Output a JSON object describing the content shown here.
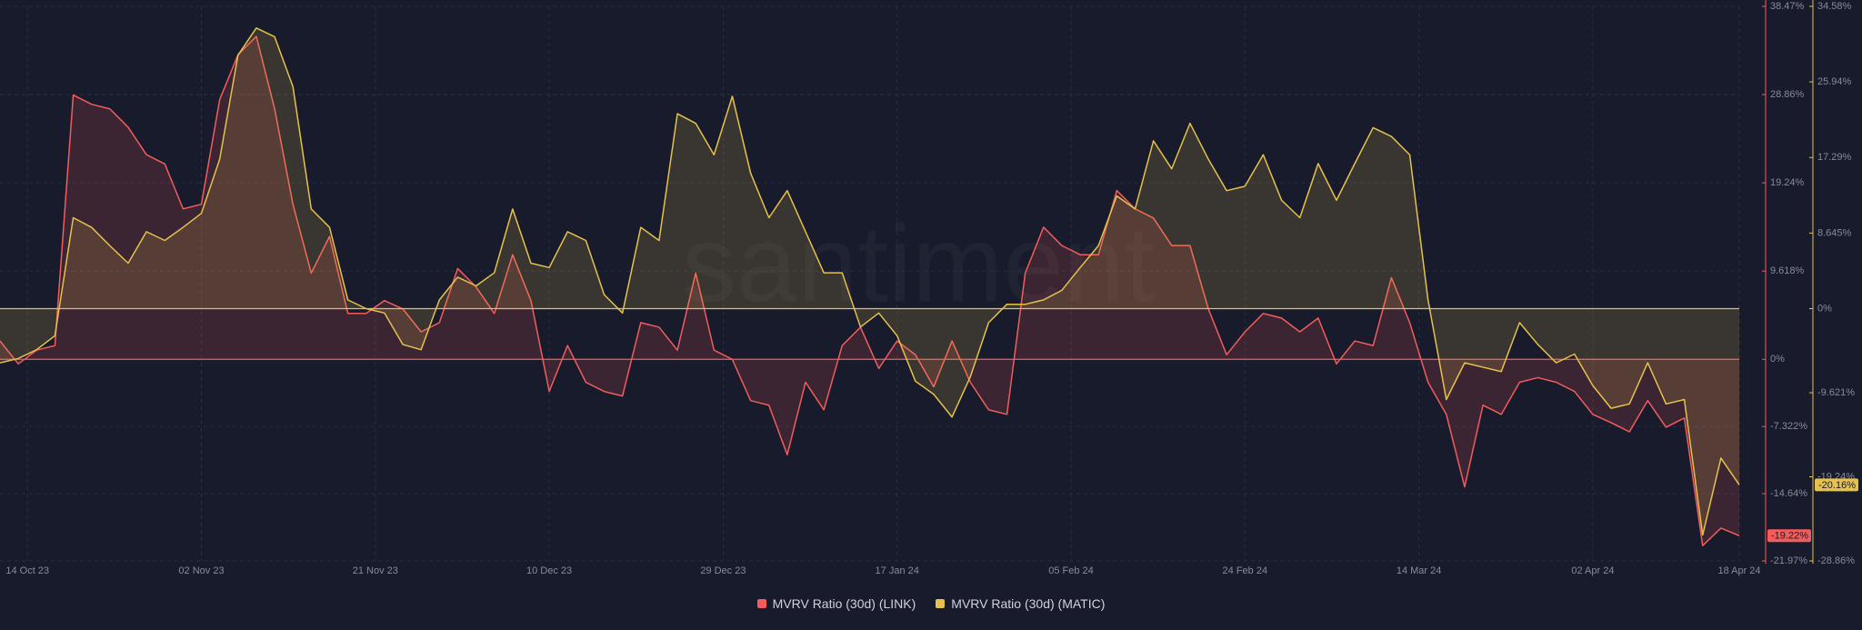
{
  "chart_data": {
    "type": "line",
    "watermark": "santiment",
    "x": [
      "2023-10-11",
      "2023-10-13",
      "2023-10-15",
      "2023-10-17",
      "2023-10-19",
      "2023-10-21",
      "2023-10-23",
      "2023-10-25",
      "2023-10-27",
      "2023-10-29",
      "2023-10-31",
      "2023-11-02",
      "2023-11-04",
      "2023-11-06",
      "2023-11-08",
      "2023-11-10",
      "2023-11-12",
      "2023-11-14",
      "2023-11-16",
      "2023-11-18",
      "2023-11-20",
      "2023-11-22",
      "2023-11-24",
      "2023-11-26",
      "2023-11-28",
      "2023-11-30",
      "2023-12-02",
      "2023-12-04",
      "2023-12-06",
      "2023-12-08",
      "2023-12-10",
      "2023-12-12",
      "2023-12-14",
      "2023-12-16",
      "2023-12-18",
      "2023-12-20",
      "2023-12-22",
      "2023-12-24",
      "2023-12-26",
      "2023-12-28",
      "2023-12-30",
      "2024-01-01",
      "2024-01-03",
      "2024-01-05",
      "2024-01-07",
      "2024-01-09",
      "2024-01-11",
      "2024-01-13",
      "2024-01-15",
      "2024-01-17",
      "2024-01-19",
      "2024-01-21",
      "2024-01-23",
      "2024-01-25",
      "2024-01-27",
      "2024-01-29",
      "2024-01-31",
      "2024-02-02",
      "2024-02-04",
      "2024-02-06",
      "2024-02-08",
      "2024-02-10",
      "2024-02-12",
      "2024-02-14",
      "2024-02-16",
      "2024-02-18",
      "2024-02-20",
      "2024-02-22",
      "2024-02-24",
      "2024-02-26",
      "2024-02-28",
      "2024-03-01",
      "2024-03-03",
      "2024-03-05",
      "2024-03-07",
      "2024-03-09",
      "2024-03-11",
      "2024-03-13",
      "2024-03-15",
      "2024-03-17",
      "2024-03-19",
      "2024-03-21",
      "2024-03-23",
      "2024-03-25",
      "2024-03-27",
      "2024-03-29",
      "2024-03-31",
      "2024-04-02",
      "2024-04-04",
      "2024-04-06",
      "2024-04-08",
      "2024-04-10",
      "2024-04-12",
      "2024-04-14",
      "2024-04-16",
      "2024-04-18"
    ],
    "xlim": [
      "2023-10-11",
      "2024-04-18"
    ],
    "xticks": [
      {
        "value": "2023-10-14",
        "label": "14 Oct 23"
      },
      {
        "value": "2023-11-02",
        "label": "02 Nov 23"
      },
      {
        "value": "2023-11-21",
        "label": "21 Nov 23"
      },
      {
        "value": "2023-12-10",
        "label": "10 Dec 23"
      },
      {
        "value": "2023-12-29",
        "label": "29 Dec 23"
      },
      {
        "value": "2024-01-17",
        "label": "17 Jan 24"
      },
      {
        "value": "2024-02-05",
        "label": "05 Feb 24"
      },
      {
        "value": "2024-02-24",
        "label": "24 Feb 24"
      },
      {
        "value": "2024-03-14",
        "label": "14 Mar 24"
      },
      {
        "value": "2024-04-02",
        "label": "02 Apr 24"
      },
      {
        "value": "2024-04-18",
        "label": "18 Apr 24"
      }
    ],
    "ylim": [
      -21.97,
      38.47
    ],
    "yticks": [
      {
        "value": 38.47,
        "label": "38.47%"
      },
      {
        "value": 28.86,
        "label": "28.86%"
      },
      {
        "value": 19.24,
        "label": "19.24%"
      },
      {
        "value": 9.618,
        "label": "9.618%"
      },
      {
        "value": 0,
        "label": "0%"
      },
      {
        "value": -7.322,
        "label": "-7.322%"
      },
      {
        "value": -14.64,
        "label": "-14.64%"
      },
      {
        "value": -21.97,
        "label": "-21.97%"
      }
    ],
    "y2lim": [
      -28.86,
      34.58
    ],
    "y2ticks": [
      {
        "value": 34.58,
        "label": "34.58%"
      },
      {
        "value": 25.94,
        "label": "25.94%"
      },
      {
        "value": 17.29,
        "label": "17.29%"
      },
      {
        "value": 8.645,
        "label": "8.645%"
      },
      {
        "value": 0,
        "label": "0%"
      },
      {
        "value": -9.621,
        "label": "-9.621%"
      },
      {
        "value": -19.24,
        "label": "-19.24%"
      },
      {
        "value": -28.86,
        "label": "-28.86%"
      }
    ],
    "grid": true,
    "series": [
      {
        "name": "MVRV Ratio (30d) (LINK)",
        "color": "#f25c5c",
        "end_label": "-19.22%",
        "values": [
          2.0,
          -0.5,
          1.0,
          1.5,
          28.8,
          27.8,
          27.3,
          25.3,
          22.3,
          21.3,
          16.4,
          16.9,
          28.3,
          33.2,
          35.2,
          27.3,
          16.9,
          9.4,
          13.4,
          5.0,
          5.0,
          6.4,
          5.5,
          3.0,
          4.0,
          9.9,
          7.9,
          5.0,
          11.4,
          6.4,
          -3.5,
          1.5,
          -2.5,
          -3.5,
          -4.0,
          4.0,
          3.5,
          1.0,
          9.4,
          1.0,
          0,
          -4.5,
          -5.0,
          -10.4,
          -2.5,
          -5.5,
          1.5,
          3.5,
          -1.0,
          2.0,
          0.5,
          -3.0,
          2.0,
          -2.5,
          -5.5,
          -6.0,
          9.4,
          14.4,
          12.4,
          11.4,
          11.4,
          18.4,
          16.4,
          15.4,
          12.4,
          12.4,
          5.5,
          0.5,
          3.0,
          5.0,
          4.5,
          3.0,
          4.5,
          -0.5,
          2.0,
          1.5,
          8.9,
          4.0,
          -2.5,
          -6.0,
          -13.9,
          -5.0,
          -6.0,
          -2.5,
          -2.0,
          -2.5,
          -3.5,
          -6.0,
          -6.9,
          -7.9,
          -4.5,
          -7.4,
          -6.4,
          -20.3,
          -18.4,
          -19.22
        ]
      },
      {
        "name": "MVRV Ratio (30d) (MATIC)",
        "color": "#e6c14c",
        "axis": "y2",
        "end_label": "-20.16%",
        "values": [
          -6.2,
          -5.7,
          -4.7,
          -3.1,
          10.4,
          9.3,
          7.2,
          5.2,
          8.8,
          7.8,
          9.3,
          10.9,
          17.1,
          29.0,
          32.1,
          31.1,
          25.4,
          11.4,
          9.3,
          1.0,
          0,
          -0.5,
          -4.1,
          -4.7,
          1.0,
          3.6,
          2.6,
          4.1,
          11.4,
          5.2,
          4.7,
          8.8,
          7.8,
          1.6,
          -0.5,
          9.3,
          7.8,
          22.3,
          21.2,
          17.6,
          24.3,
          15.5,
          10.4,
          13.5,
          8.8,
          4.1,
          4.1,
          -2.1,
          -0.5,
          -3.1,
          -8.3,
          -9.8,
          -12.4,
          -7.8,
          -1.6,
          0.5,
          0.5,
          1.0,
          2.1,
          4.7,
          7.2,
          12.9,
          11.4,
          19.2,
          16.0,
          21.2,
          17.1,
          13.5,
          14.0,
          17.6,
          12.4,
          10.4,
          16.6,
          12.4,
          16.6,
          20.7,
          19.7,
          17.6,
          1.0,
          -10.4,
          -6.2,
          -6.7,
          -7.2,
          -1.6,
          -4.1,
          -6.2,
          -5.2,
          -8.8,
          -11.4,
          -10.9,
          -6.2,
          -10.9,
          -10.4,
          -25.9,
          -17.1,
          -20.16
        ]
      }
    ]
  }
}
